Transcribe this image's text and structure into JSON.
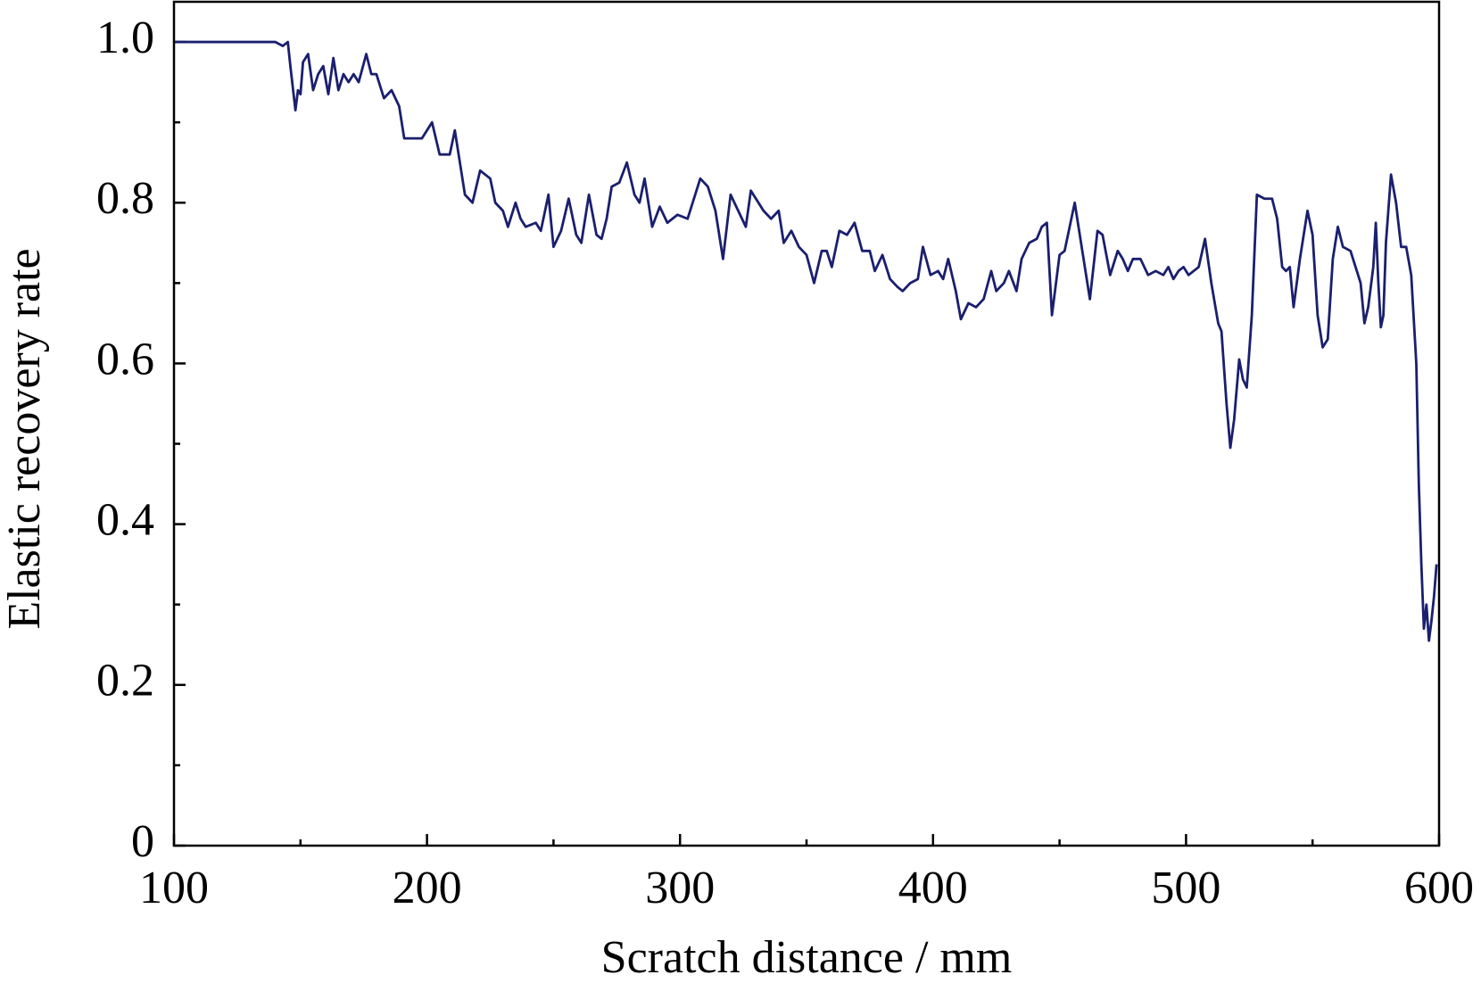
{
  "chart_data": {
    "type": "line",
    "xlabel": "Scratch distance / mm",
    "ylabel": "Elastic recovery rate",
    "xlim": [
      100,
      600
    ],
    "xticks": [
      100,
      200,
      300,
      400,
      500,
      600
    ],
    "xminorticks": [
      150,
      250,
      350,
      450,
      550
    ],
    "ylim": [
      0,
      1.05
    ],
    "yticks": [
      0,
      0.2,
      0.4,
      0.6,
      0.8,
      {
        "value": 1,
        "label": "1.0"
      }
    ],
    "yminorticks": [
      0.1,
      0.3,
      0.5,
      0.7,
      0.9
    ],
    "grid": false,
    "series": [
      {
        "color": "#1a1f6e",
        "x": [
          100,
          140,
          143,
          145,
          146,
          148,
          149,
          150,
          151,
          153,
          155,
          157,
          159,
          161,
          163,
          165,
          167,
          169,
          171,
          173,
          176,
          178,
          180,
          183,
          186,
          189,
          191,
          194,
          198,
          202,
          205,
          209,
          211,
          213,
          215,
          218,
          221,
          225,
          227,
          230,
          232,
          235,
          237,
          239,
          243,
          245,
          248,
          250,
          253,
          256,
          259,
          261,
          264,
          267,
          269,
          271,
          273,
          276,
          279,
          282,
          284,
          286,
          289,
          292,
          295,
          299,
          303,
          308,
          311,
          314,
          317,
          320,
          323,
          326,
          328,
          331,
          333,
          336,
          339,
          341,
          344,
          347,
          350,
          353,
          356,
          358,
          360,
          363,
          366,
          369,
          372,
          375,
          377,
          380,
          383,
          386,
          388,
          391,
          394,
          396,
          399,
          402,
          404,
          406,
          409,
          411,
          414,
          417,
          420,
          423,
          425,
          428,
          430,
          433,
          435,
          438,
          441,
          443,
          445,
          447,
          450,
          452,
          456,
          459,
          462,
          465,
          467,
          470,
          473,
          475,
          477,
          479,
          482,
          485,
          488,
          491,
          493,
          495,
          497,
          499,
          501,
          503,
          505,
          507.5,
          510,
          512.7,
          514,
          516,
          517.5,
          519,
          521,
          522.5,
          524,
          526,
          528,
          531,
          534,
          536,
          538,
          539.5,
          541,
          542.5,
          545,
          548,
          550,
          552,
          554,
          556,
          558,
          560,
          562,
          565,
          567,
          569,
          570.5,
          572,
          574,
          575,
          576,
          577,
          578,
          579,
          581,
          583,
          585,
          587,
          589,
          591,
          592,
          593,
          594,
          595,
          596,
          597,
          598,
          599
        ],
        "values": [
          1.0,
          1.0,
          0.995,
          1.0,
          0.97,
          0.915,
          0.94,
          0.935,
          0.975,
          0.985,
          0.94,
          0.96,
          0.97,
          0.935,
          0.98,
          0.94,
          0.96,
          0.95,
          0.96,
          0.95,
          0.985,
          0.96,
          0.96,
          0.93,
          0.94,
          0.92,
          0.88,
          0.88,
          0.88,
          0.9,
          0.86,
          0.86,
          0.89,
          0.85,
          0.81,
          0.8,
          0.84,
          0.83,
          0.8,
          0.79,
          0.77,
          0.8,
          0.78,
          0.77,
          0.775,
          0.765,
          0.81,
          0.745,
          0.765,
          0.805,
          0.76,
          0.75,
          0.81,
          0.76,
          0.755,
          0.78,
          0.82,
          0.825,
          0.85,
          0.81,
          0.8,
          0.83,
          0.77,
          0.795,
          0.775,
          0.785,
          0.78,
          0.83,
          0.82,
          0.79,
          0.73,
          0.81,
          0.79,
          0.77,
          0.815,
          0.8,
          0.79,
          0.78,
          0.79,
          0.75,
          0.765,
          0.745,
          0.735,
          0.7,
          0.74,
          0.74,
          0.72,
          0.765,
          0.76,
          0.775,
          0.74,
          0.74,
          0.715,
          0.735,
          0.705,
          0.695,
          0.69,
          0.7,
          0.705,
          0.745,
          0.71,
          0.715,
          0.705,
          0.73,
          0.69,
          0.655,
          0.675,
          0.67,
          0.68,
          0.715,
          0.69,
          0.7,
          0.715,
          0.69,
          0.73,
          0.75,
          0.755,
          0.77,
          0.775,
          0.66,
          0.735,
          0.74,
          0.8,
          0.74,
          0.68,
          0.765,
          0.76,
          0.71,
          0.74,
          0.73,
          0.715,
          0.73,
          0.73,
          0.71,
          0.715,
          0.71,
          0.72,
          0.705,
          0.715,
          0.72,
          0.71,
          0.715,
          0.72,
          0.755,
          0.7,
          0.65,
          0.64,
          0.55,
          0.495,
          0.53,
          0.605,
          0.58,
          0.57,
          0.66,
          0.81,
          0.805,
          0.805,
          0.78,
          0.72,
          0.715,
          0.72,
          0.67,
          0.73,
          0.79,
          0.76,
          0.66,
          0.62,
          0.63,
          0.73,
          0.77,
          0.745,
          0.74,
          0.72,
          0.7,
          0.65,
          0.67,
          0.72,
          0.775,
          0.7,
          0.645,
          0.66,
          0.75,
          0.835,
          0.8,
          0.745,
          0.745,
          0.71,
          0.6,
          0.45,
          0.35,
          0.27,
          0.3,
          0.255,
          0.28,
          0.31,
          0.35
        ]
      }
    ]
  }
}
